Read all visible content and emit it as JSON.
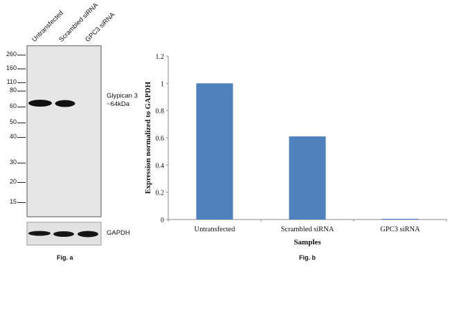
{
  "fig_a": {
    "lanes": [
      "Untransfected",
      "Scrambled siRNA",
      "GPC3 siRNA"
    ],
    "markers": [
      "260",
      "160",
      "110",
      "80",
      "60",
      "50",
      "40",
      "30",
      "20",
      "15"
    ],
    "target_label_line1": "Glypican 3",
    "target_label_line2": "~64kDa",
    "loading_control": "GAPDH",
    "caption": "Fig. a"
  },
  "fig_b": {
    "caption": "Fig. b"
  },
  "chart_data": {
    "type": "bar",
    "categories": [
      "Untransfected",
      "Scrambled siRNA",
      "GPC3 siRNA"
    ],
    "values": [
      1.0,
      0.61,
      0.005
    ],
    "title": "",
    "xlabel": "Samples",
    "ylabel": "Expression normalized to GAPDH",
    "ylim": [
      0,
      1.2
    ],
    "yticks": [
      "0",
      "0.2",
      "0.4",
      "0.6",
      "0.8",
      "1",
      "1.2"
    ],
    "grid": false,
    "bar_color": "#4f81bd"
  }
}
